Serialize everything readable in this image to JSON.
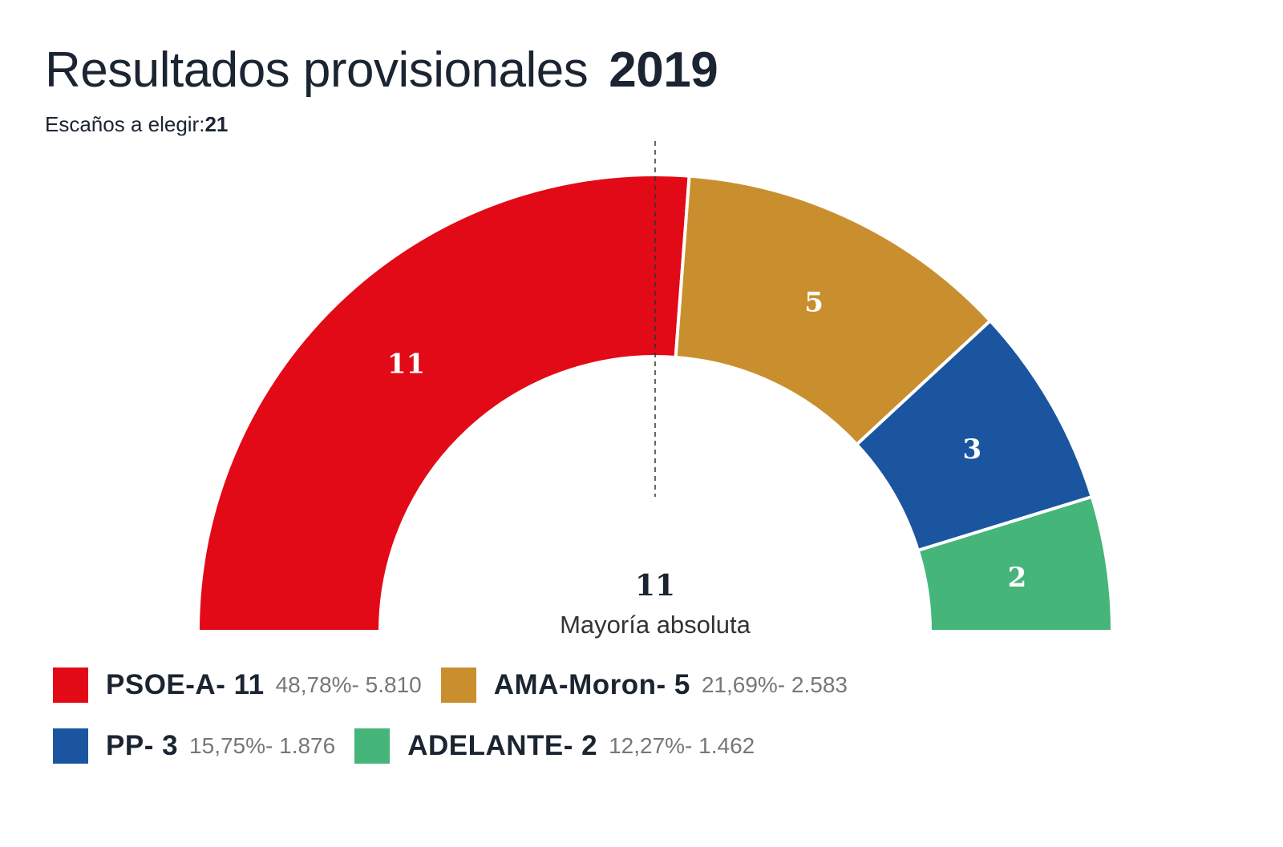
{
  "header": {
    "title": "Resultados provisionales",
    "year": "2019",
    "subtitle_label": "Escaños a elegir:",
    "subtitle_value": "21"
  },
  "chart_data": {
    "type": "parliament-semicircle",
    "title": "Resultados provisionales 2019",
    "total_seats": 21,
    "majority": {
      "value": "11",
      "label": "Mayoría absoluta"
    },
    "series": [
      {
        "name": "PSOE-A",
        "seats": 11,
        "seats_label": "11",
        "percent": "48,78%",
        "votes": "5.810",
        "color": "#e20a17"
      },
      {
        "name": "AMA-Moron",
        "seats": 5,
        "seats_label": "5",
        "percent": "21,69%",
        "votes": "2.583",
        "color": "#c98f2e"
      },
      {
        "name": "PP",
        "seats": 3,
        "seats_label": "3",
        "percent": "15,75%",
        "votes": "1.876",
        "color": "#1b55a0"
      },
      {
        "name": "ADELANTE",
        "seats": 2,
        "seats_label": "2",
        "percent": "12,27%",
        "votes": "1.462",
        "color": "#45b57a"
      }
    ],
    "legend": [
      {
        "label": "PSOE-A- 11",
        "stats": "48,78%- 5.810"
      },
      {
        "label": "AMA-Moron- 5",
        "stats": "21,69%- 2.583"
      },
      {
        "label": "PP- 3",
        "stats": "15,75%- 1.876"
      },
      {
        "label": "ADELANTE- 2",
        "stats": "12,27%- 1.462"
      }
    ]
  }
}
